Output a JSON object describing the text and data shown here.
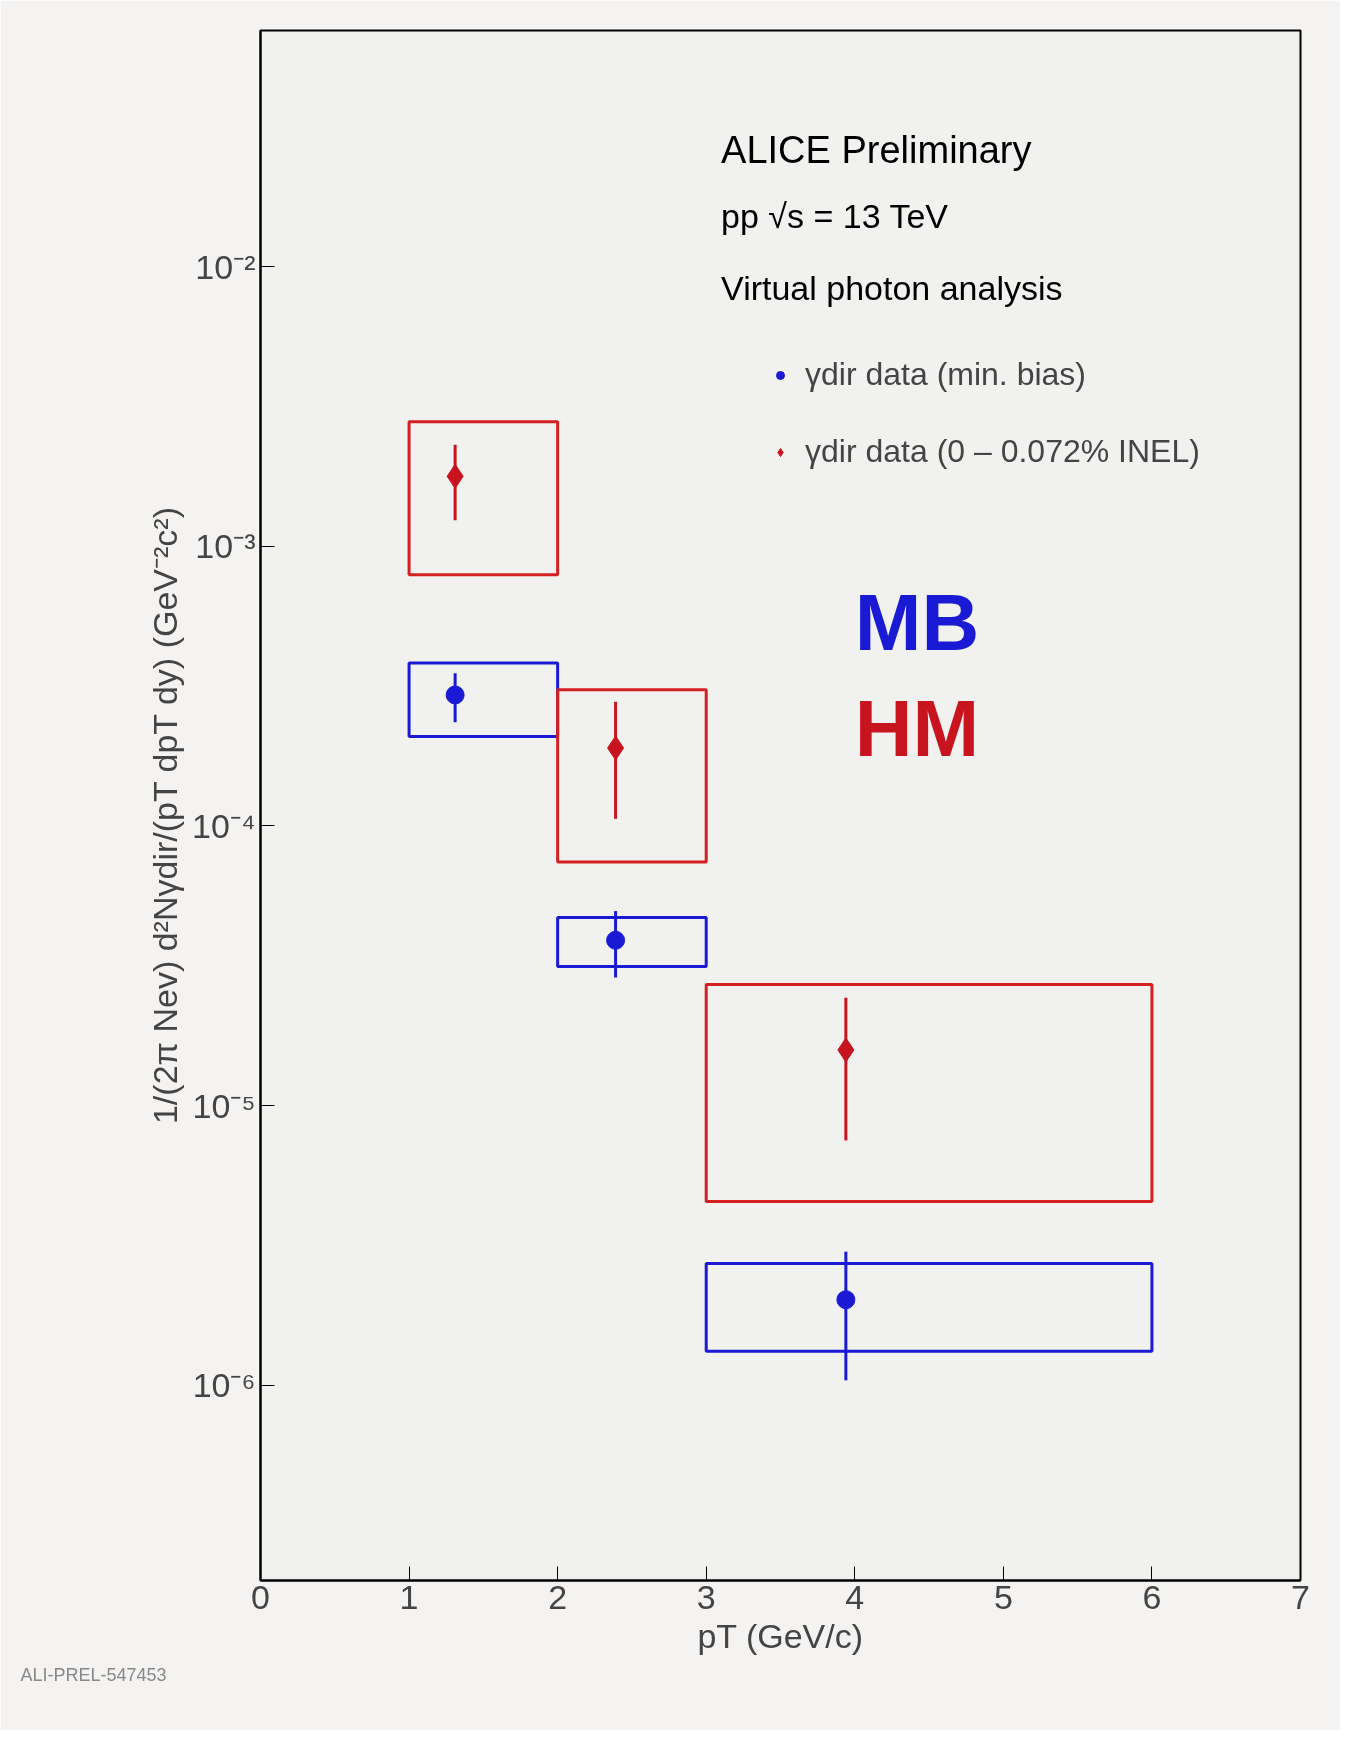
{
  "chart_data": {
    "type": "scatter",
    "xlabel": "pT (GeV/c)",
    "ylabel": "1/(2π Nev)  d²Nγdir/(pT dpT dy)  (GeV⁻²c²)",
    "log": "y",
    "xlim": [
      0,
      7
    ],
    "ylim": [
      2e-07,
      0.07
    ],
    "xticks": [
      0,
      1,
      2,
      3,
      4,
      5,
      6,
      7
    ],
    "yticks": [
      {
        "value": 1e-06,
        "label": "10⁻⁶"
      },
      {
        "value": 1e-05,
        "label": "10⁻⁵"
      },
      {
        "value": 0.0001,
        "label": "10⁻⁴"
      },
      {
        "value": 0.001,
        "label": "10⁻³"
      },
      {
        "value": 0.01,
        "label": "10⁻²"
      }
    ],
    "grid": false,
    "legend": "top right",
    "annotations": [
      "ALICE Preliminary",
      "pp √s = 13 TeV",
      "Virtual photon analysis",
      "MB",
      "HM",
      "ALI-PREL-547453"
    ],
    "series": [
      {
        "name": "γdir data (min. bias)",
        "marker": "circle",
        "color": "#1a1ad4",
        "x": [
          1.31,
          2.39,
          3.94
        ],
        "values": [
          0.000294,
          3.9e-05,
          2.02e-06
        ],
        "errors": [
          [
            0.000235,
            0.000352
          ],
          [
            2.87e-05,
            4.96e-05
          ],
          [
            1.04e-06,
            3e-06
          ]
        ]
      },
      {
        "name": "γdir data (0 – 0.072% INEL)",
        "marker": "diamond",
        "color": "#c8141e",
        "x": [
          1.31,
          2.39,
          3.94
        ],
        "values": [
          0.00178,
          0.00019,
          1.58e-05
        ],
        "errors": [
          [
            0.00124,
            0.00231
          ],
          [
            0.000106,
            0.000278
          ],
          [
            7.5e-06,
            2.43e-05
          ]
        ]
      },
      {
        "type": "histogram",
        "color": "#1a1ad4",
        "bins": [
          1,
          2,
          3,
          6
        ],
        "base": [
          0.000209,
          3.14e-05,
          1.32e-06
        ],
        "values": [
          0.000174,
          1.56e-05,
          1.4e-06
        ]
      },
      {
        "type": "histogram",
        "color": "#d42020",
        "bins": [
          1,
          2,
          3,
          6
        ],
        "base": [
          0.000792,
          7.43e-05,
          4.54e-06
        ],
        "values": [
          0.001998,
          0.0002327,
          2.256e-05
        ]
      }
    ]
  }
}
